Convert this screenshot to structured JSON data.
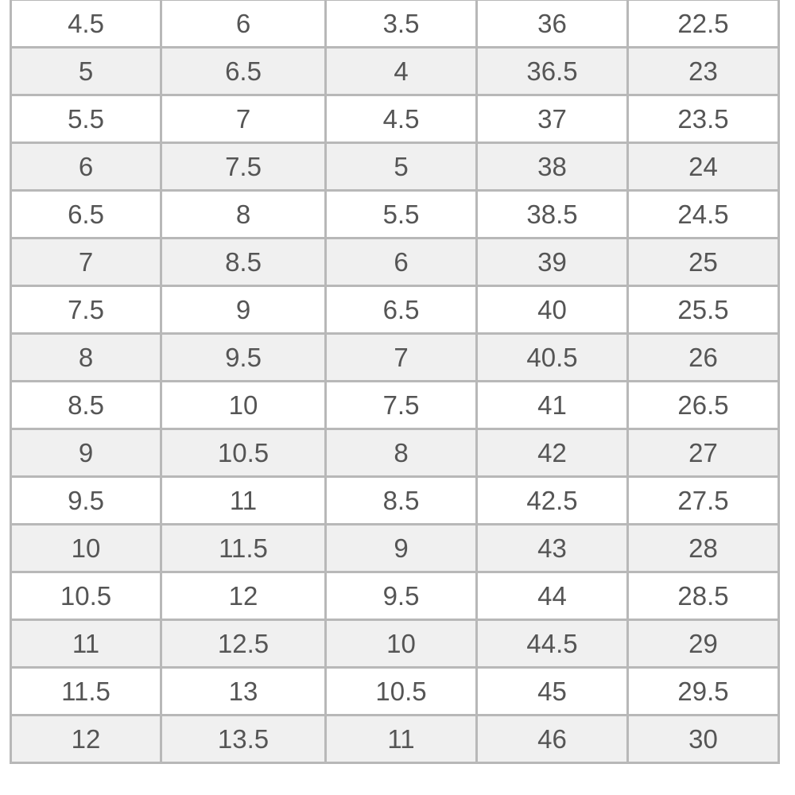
{
  "table": {
    "rows": [
      [
        "4.5",
        "6",
        "3.5",
        "36",
        "22.5"
      ],
      [
        "5",
        "6.5",
        "4",
        "36.5",
        "23"
      ],
      [
        "5.5",
        "7",
        "4.5",
        "37",
        "23.5"
      ],
      [
        "6",
        "7.5",
        "5",
        "38",
        "24"
      ],
      [
        "6.5",
        "8",
        "5.5",
        "38.5",
        "24.5"
      ],
      [
        "7",
        "8.5",
        "6",
        "39",
        "25"
      ],
      [
        "7.5",
        "9",
        "6.5",
        "40",
        "25.5"
      ],
      [
        "8",
        "9.5",
        "7",
        "40.5",
        "26"
      ],
      [
        "8.5",
        "10",
        "7.5",
        "41",
        "26.5"
      ],
      [
        "9",
        "10.5",
        "8",
        "42",
        "27"
      ],
      [
        "9.5",
        "11",
        "8.5",
        "42.5",
        "27.5"
      ],
      [
        "10",
        "11.5",
        "9",
        "43",
        "28"
      ],
      [
        "10.5",
        "12",
        "9.5",
        "44",
        "28.5"
      ],
      [
        "11",
        "12.5",
        "10",
        "44.5",
        "29"
      ],
      [
        "11.5",
        "13",
        "10.5",
        "45",
        "29.5"
      ],
      [
        "12",
        "13.5",
        "11",
        "46",
        "30"
      ]
    ],
    "colors": {
      "border": "#b8b8b8",
      "stripe": "#f0f0f0",
      "text": "#555555"
    }
  }
}
